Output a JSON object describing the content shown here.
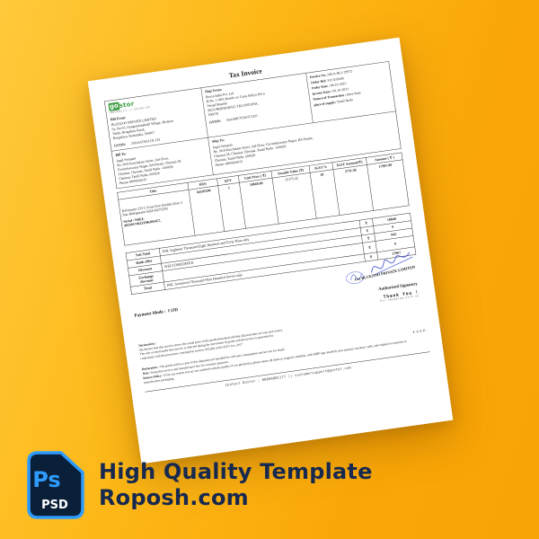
{
  "promo": {
    "icon": {
      "ps_label": "Ps",
      "psd_label": "PSD",
      "accent": "#2e9bff",
      "bg": "#0a2038"
    },
    "title_line1": "High Quality Template",
    "title_line2": "Roposh.com"
  },
  "invoice": {
    "doc_title": "Tax Invoice",
    "brand": {
      "logo_go": "go",
      "logo_stor": "stor",
      "tagline": "08069801177 || GOSTOR.COM"
    },
    "bill_from": {
      "heading": "Bill From:",
      "lines": [
        "BLUEZOO PRIVATE LIMITED",
        "Sy. No.55, Anugondanahalli Village, Hoskote",
        "Taluk, Bengaluru Rural,",
        "Bengaluru, Karnataka, 560067"
      ],
      "gstin_label": "GSTIN:",
      "gstin": "29AAACR2113L1ZI"
    },
    "ship_from": {
      "heading": "Ship From:",
      "lines": [
        "Iberza India Pvt. Ltd",
        "H.No. 1-98/5 Beside s/o Guru Aditya Deva",
        "Vernal Mandal",
        "SECUNDERABAD, TELANGANA,",
        "500078"
      ],
      "gstin_label": "GSTIN:",
      "gstin": "36AAMCV9367C1ZO"
    },
    "meta": [
      {
        "label": "Invoice No:",
        "value": "248-A-BL1-29972"
      },
      {
        "label": "Order Ref:",
        "value": "3113159445"
      },
      {
        "label": "Order Date :",
        "value": "08-10-2023"
      },
      {
        "label": "Invoice Date :",
        "value": "09-10-2023"
      },
      {
        "label": "Nature of Transaction :",
        "value": "Inter-State"
      },
      {
        "label": "place of supply:",
        "value": "Tamil Nadu"
      }
    ],
    "bill_to": {
      "heading": "Bill To:",
      "lines": [
        "Jugal Senapati",
        "No. 96/8 Kutchalam Street, 2nd Floor,",
        "Govindaswamy Nagar, RA Puram, Chennai 28,",
        "Chennai, Chennai, Tamil Nadu - 600028",
        "Chennai, Tamil Nadu, 600028",
        "Phone: 8899504515"
      ]
    },
    "ship_to": {
      "heading": "Ship To:",
      "lines": [
        "Jugal Senapati",
        "No. 96/8 Kutchalam Street, 2nd Floor, Govindaswamy Nagar, RA Puram,",
        "Chennai 28, Chennai, Chennai, Tamil Nadu - 600028",
        "Chennai, Tamil Nadu, 600028",
        "Phone: 8899504515"
      ]
    },
    "items_table": {
      "headers": [
        "Title",
        "HSN",
        "QTY",
        "Unit Price ( ₹)",
        "Taxable Value (₹)",
        "IGST %",
        "IGST Amount(₹)",
        "Amount ( ₹ )"
      ],
      "row": {
        "title": "Kelvinator 252 L Frost Free Double Door 2 Star Refrigerator KRF-B2755SV",
        "serial_label": "Serial / IMEI:",
        "serial": "4923917492JZ0K095457,",
        "hsn": "84185500",
        "qty": "1",
        "unit_price": "18849.00",
        "taxable_value": "15175.42",
        "igst_pct": "18",
        "igst_amount": "2731.58",
        "amount": "17907.00"
      }
    },
    "summary": {
      "currency": "₹",
      "rows": [
        {
          "label": "Sub Total",
          "desc": "INR. Eighteen Thousand Eight Hundred and Forty Nine only",
          "amount": "18849"
        },
        {
          "label": "Bank offer",
          "desc": "",
          "amount": "0"
        },
        {
          "label": "Discount",
          "desc": "WELCOMEOFFER",
          "amount": "942"
        },
        {
          "label": "Exchange discount",
          "desc": "",
          "amount": "0"
        },
        {
          "label": "Total",
          "desc": "INR. Seventeen Thousand Nine Hundred Seven only",
          "amount": "17907"
        }
      ]
    },
    "payment": {
      "label": "Payment Mode :",
      "value": "COD"
    },
    "signature": {
      "for_company": "For BLUEZOO PRIVATE LIMITED",
      "authorized": "Authorized Signatory",
      "thanks": "Thank You !",
      "thanks_sub": "For shopping with us",
      "ink_color": "#3b4fd0"
    },
    "declaration1": {
      "heading": "Declaration :",
      "lines": [
        "We declare that this invoice shows the actual price of the goods described and that all particulars are true and correct.",
        "The sale covered under this invoice is affected during the movement of goods and the invoice is generated in",
        "conformity with the provisions contained in section 10(1)(b) of the IGST Act, 2017"
      ]
    },
    "declaration2": {
      "items": [
        {
          "bold": "Declaration :",
          "text": " The goods sold as a part of this shipment are intended for end user consumption and are not for resale."
        },
        {
          "bold": "Note :",
          "text": " Keep this invoice and manufacturer box for warranty purposes."
        },
        {
          "bold": "Return Policy :",
          "text": " If for any reason you are not satisfied with the quality of our product(s), please return all items in original condition, with MRP tags attached, user manual, warranty cards, and original accessories in manufacturer packaging."
        }
      ],
      "eoe": "E & O.E."
    },
    "footer": "Contact Gostor : 08069801177 || customersupport@gostor.com"
  }
}
